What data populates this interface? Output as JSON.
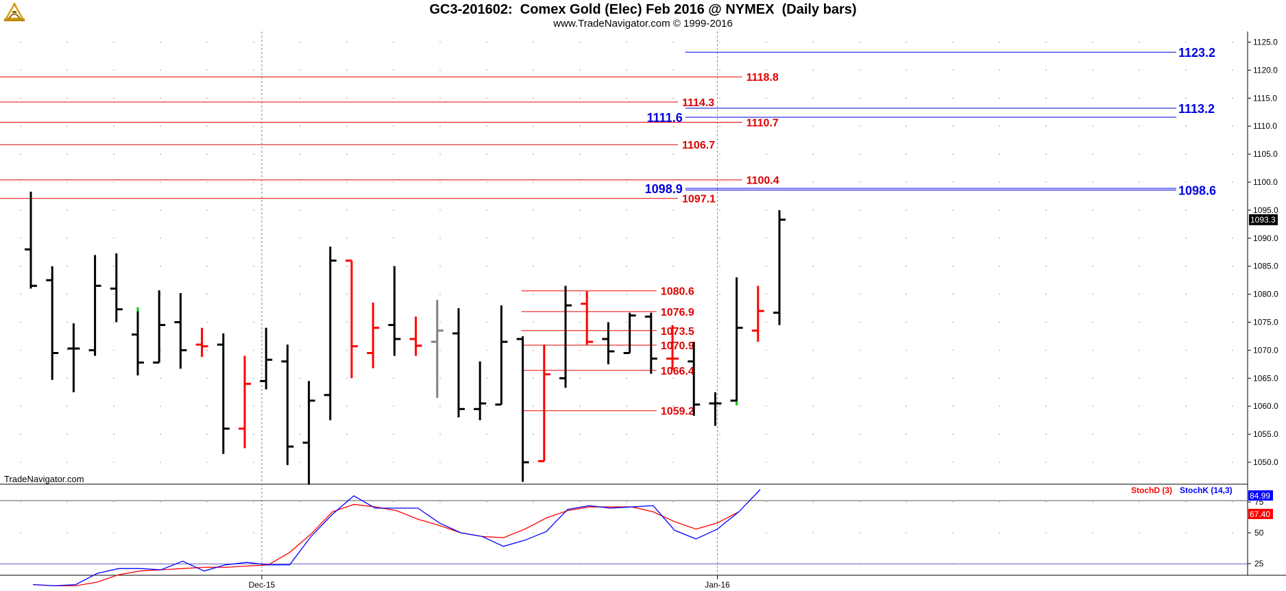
{
  "header": {
    "title": "GC3-201602:  Comex Gold (Elec) Feb 2016 @ NYMEX  (Daily bars)",
    "subtitle": "www.TradeNavigator.com © 1999-2016"
  },
  "watermark": "TradeNavigator.com",
  "colors": {
    "up_bar": "#000000",
    "down_bar": "#ff0000",
    "neutral_bar": "#808080",
    "red_level": "#e00000",
    "blue_level": "#0000e0",
    "stoch_d": "#ff0000",
    "stoch_k": "#0000ff",
    "last_price_bg": "#000000"
  },
  "chart_data": [
    {
      "type": "ohlc",
      "ylim": [
        1045,
        1127
      ],
      "yticks": [
        "1050.0",
        "1055.0",
        "1060.0",
        "1065.0",
        "1070.0",
        "1075.0",
        "1080.0",
        "1085.0",
        "1090.0",
        "1095.0",
        "1100.0",
        "1105.0",
        "1110.0",
        "1115.0",
        "1120.0",
        "1125.0"
      ],
      "xlabels": [
        "Dec-15",
        "Jan-16"
      ],
      "last_price_label": "1093.3",
      "bars": [
        {
          "o": 1088.0,
          "h": 1098.3,
          "l": 1081.0,
          "c": 1081.5,
          "col": "up"
        },
        {
          "o": 1082.5,
          "h": 1085.0,
          "l": 1064.7,
          "c": 1069.5,
          "col": "up"
        },
        {
          "o": 1070.3,
          "h": 1074.8,
          "l": 1062.5,
          "c": 1070.3,
          "col": "up"
        },
        {
          "o": 1070.0,
          "h": 1087.0,
          "l": 1069.0,
          "c": 1081.5,
          "col": "up"
        },
        {
          "o": 1081.0,
          "h": 1087.3,
          "l": 1075.0,
          "c": 1077.3,
          "col": "up"
        },
        {
          "o": 1072.8,
          "h": 1077.3,
          "l": 1065.5,
          "c": 1067.8,
          "col": "up"
        },
        {
          "o": 1067.8,
          "h": 1080.7,
          "l": 1067.8,
          "c": 1074.5,
          "col": "up"
        },
        {
          "o": 1075.0,
          "h": 1080.2,
          "l": 1066.7,
          "c": 1070.0,
          "col": "up"
        },
        {
          "o": 1071.0,
          "h": 1074.0,
          "l": 1068.8,
          "c": 1070.7,
          "col": "down"
        },
        {
          "o": 1071.0,
          "h": 1073.0,
          "l": 1051.5,
          "c": 1056.0,
          "col": "up"
        },
        {
          "o": 1056.0,
          "h": 1069.0,
          "l": 1052.5,
          "c": 1064.0,
          "col": "down"
        },
        {
          "o": 1064.5,
          "h": 1074.0,
          "l": 1063.0,
          "c": 1068.3,
          "col": "up"
        },
        {
          "o": 1068.0,
          "h": 1071.0,
          "l": 1049.5,
          "c": 1052.8,
          "col": "up"
        },
        {
          "o": 1053.5,
          "h": 1064.5,
          "l": 1046.0,
          "c": 1061.0,
          "col": "up"
        },
        {
          "o": 1062.0,
          "h": 1088.5,
          "l": 1057.5,
          "c": 1086.0,
          "col": "up"
        },
        {
          "o": 1086.0,
          "h": 1086.0,
          "l": 1065.0,
          "c": 1070.7,
          "col": "down"
        },
        {
          "o": 1069.5,
          "h": 1078.5,
          "l": 1066.8,
          "c": 1074.0,
          "col": "down"
        },
        {
          "o": 1074.5,
          "h": 1085.0,
          "l": 1069.0,
          "c": 1072.0,
          "col": "up"
        },
        {
          "o": 1072.0,
          "h": 1076.0,
          "l": 1069.0,
          "c": 1070.8,
          "col": "down"
        },
        {
          "o": 1071.5,
          "h": 1079.0,
          "l": 1061.5,
          "c": 1073.5,
          "col": "neutral"
        },
        {
          "o": 1073.0,
          "h": 1077.5,
          "l": 1058.0,
          "c": 1059.5,
          "col": "up"
        },
        {
          "o": 1059.5,
          "h": 1068.0,
          "l": 1057.5,
          "c": 1060.5,
          "col": "up"
        },
        {
          "o": 1060.3,
          "h": 1078.0,
          "l": 1060.3,
          "c": 1071.5,
          "col": "up"
        },
        {
          "o": 1072.0,
          "h": 1072.5,
          "l": 1046.5,
          "c": 1050.0,
          "col": "up"
        },
        {
          "o": 1050.2,
          "h": 1071.0,
          "l": 1050.2,
          "c": 1065.7,
          "col": "down"
        },
        {
          "o": 1065.0,
          "h": 1081.5,
          "l": 1063.3,
          "c": 1078.0,
          "col": "up"
        },
        {
          "o": 1078.3,
          "h": 1080.5,
          "l": 1071.0,
          "c": 1071.5,
          "col": "down"
        },
        {
          "o": 1072.0,
          "h": 1075.0,
          "l": 1067.5,
          "c": 1069.8,
          "col": "up"
        },
        {
          "o": 1069.5,
          "h": 1076.7,
          "l": 1069.5,
          "c": 1076.2,
          "col": "up"
        },
        {
          "o": 1076.0,
          "h": 1076.7,
          "l": 1065.8,
          "c": 1068.5,
          "col": "up"
        },
        {
          "o": 1068.5,
          "h": 1074.5,
          "l": 1066.5,
          "c": 1068.5,
          "col": "down"
        },
        {
          "o": 1068.0,
          "h": 1071.5,
          "l": 1058.3,
          "c": 1060.3,
          "col": "up"
        },
        {
          "o": 1060.5,
          "h": 1062.5,
          "l": 1056.5,
          "c": 1060.5,
          "col": "up"
        },
        {
          "o": 1061.0,
          "h": 1083.0,
          "l": 1060.5,
          "c": 1074.0,
          "col": "up"
        },
        {
          "o": 1073.5,
          "h": 1081.5,
          "l": 1071.5,
          "c": 1077.0,
          "col": "down"
        },
        {
          "o": 1076.7,
          "h": 1095.0,
          "l": 1074.5,
          "c": 1093.3,
          "col": "up"
        }
      ],
      "levels_red": [
        {
          "value": 1118.8,
          "label": "1118.8",
          "from_bar": -1,
          "to_bar": 33
        },
        {
          "value": 1114.3,
          "label": "1114.3",
          "from_bar": -1,
          "to_bar": 30
        },
        {
          "value": 1110.7,
          "label": "1110.7",
          "from_bar": -1,
          "to_bar": 33
        },
        {
          "value": 1106.7,
          "label": "1106.7",
          "from_bar": -1,
          "to_bar": 30
        },
        {
          "value": 1100.4,
          "label": "1100.4",
          "from_bar": -1,
          "to_bar": 33
        },
        {
          "value": 1097.1,
          "label": "1097.1",
          "from_bar": -1,
          "to_bar": 30
        },
        {
          "value": 1080.6,
          "label": "1080.6",
          "from_bar": 23,
          "to_bar": 29
        },
        {
          "value": 1076.9,
          "label": "1076.9",
          "from_bar": 23,
          "to_bar": 29
        },
        {
          "value": 1073.5,
          "label": "1073.5",
          "from_bar": 23,
          "to_bar": 29
        },
        {
          "value": 1070.9,
          "label": "1070.9",
          "from_bar": 23,
          "to_bar": 29
        },
        {
          "value": 1066.4,
          "label": "1066.4",
          "from_bar": 23,
          "to_bar": 29
        },
        {
          "value": 1059.2,
          "label": "1059.2",
          "from_bar": 23,
          "to_bar": 29
        }
      ],
      "levels_blue": [
        {
          "value": 1123.2,
          "label": "1123.2",
          "side": "right"
        },
        {
          "value": 1113.2,
          "label": "1113.2",
          "side": "right"
        },
        {
          "value": 1111.6,
          "label": "1111.6",
          "side": "left"
        },
        {
          "value": 1098.9,
          "label": "1098.9",
          "side": "left"
        },
        {
          "value": 1098.6,
          "label": "1098.6",
          "side": "right"
        }
      ]
    },
    {
      "type": "line",
      "legend": [
        "StochD (3)",
        "StochK (14,3)"
      ],
      "ylim": [
        0,
        100
      ],
      "yticks": [
        "25",
        "50",
        "75"
      ],
      "last_labels": {
        "k": "84.99",
        "d": "67.40"
      },
      "series": [
        {
          "name": "StochD (3)",
          "key": "d",
          "values": [
            8,
            7,
            7,
            10,
            16,
            19,
            20,
            21,
            22,
            22,
            23,
            24,
            34,
            49,
            67,
            73,
            71,
            68,
            61,
            56,
            50,
            47,
            46,
            53,
            62,
            68,
            71,
            71,
            71,
            67,
            59,
            53,
            58,
            67
          ]
        },
        {
          "name": "StochK (14,3)",
          "key": "k",
          "values": [
            8,
            7,
            8,
            17,
            21,
            21,
            20,
            27,
            19,
            24,
            26,
            24,
            24,
            47,
            65,
            80,
            70,
            70,
            70,
            58,
            50,
            47,
            39,
            44,
            51,
            69,
            72,
            70,
            71,
            72,
            52,
            45,
            53,
            67,
            85
          ]
        }
      ]
    }
  ]
}
